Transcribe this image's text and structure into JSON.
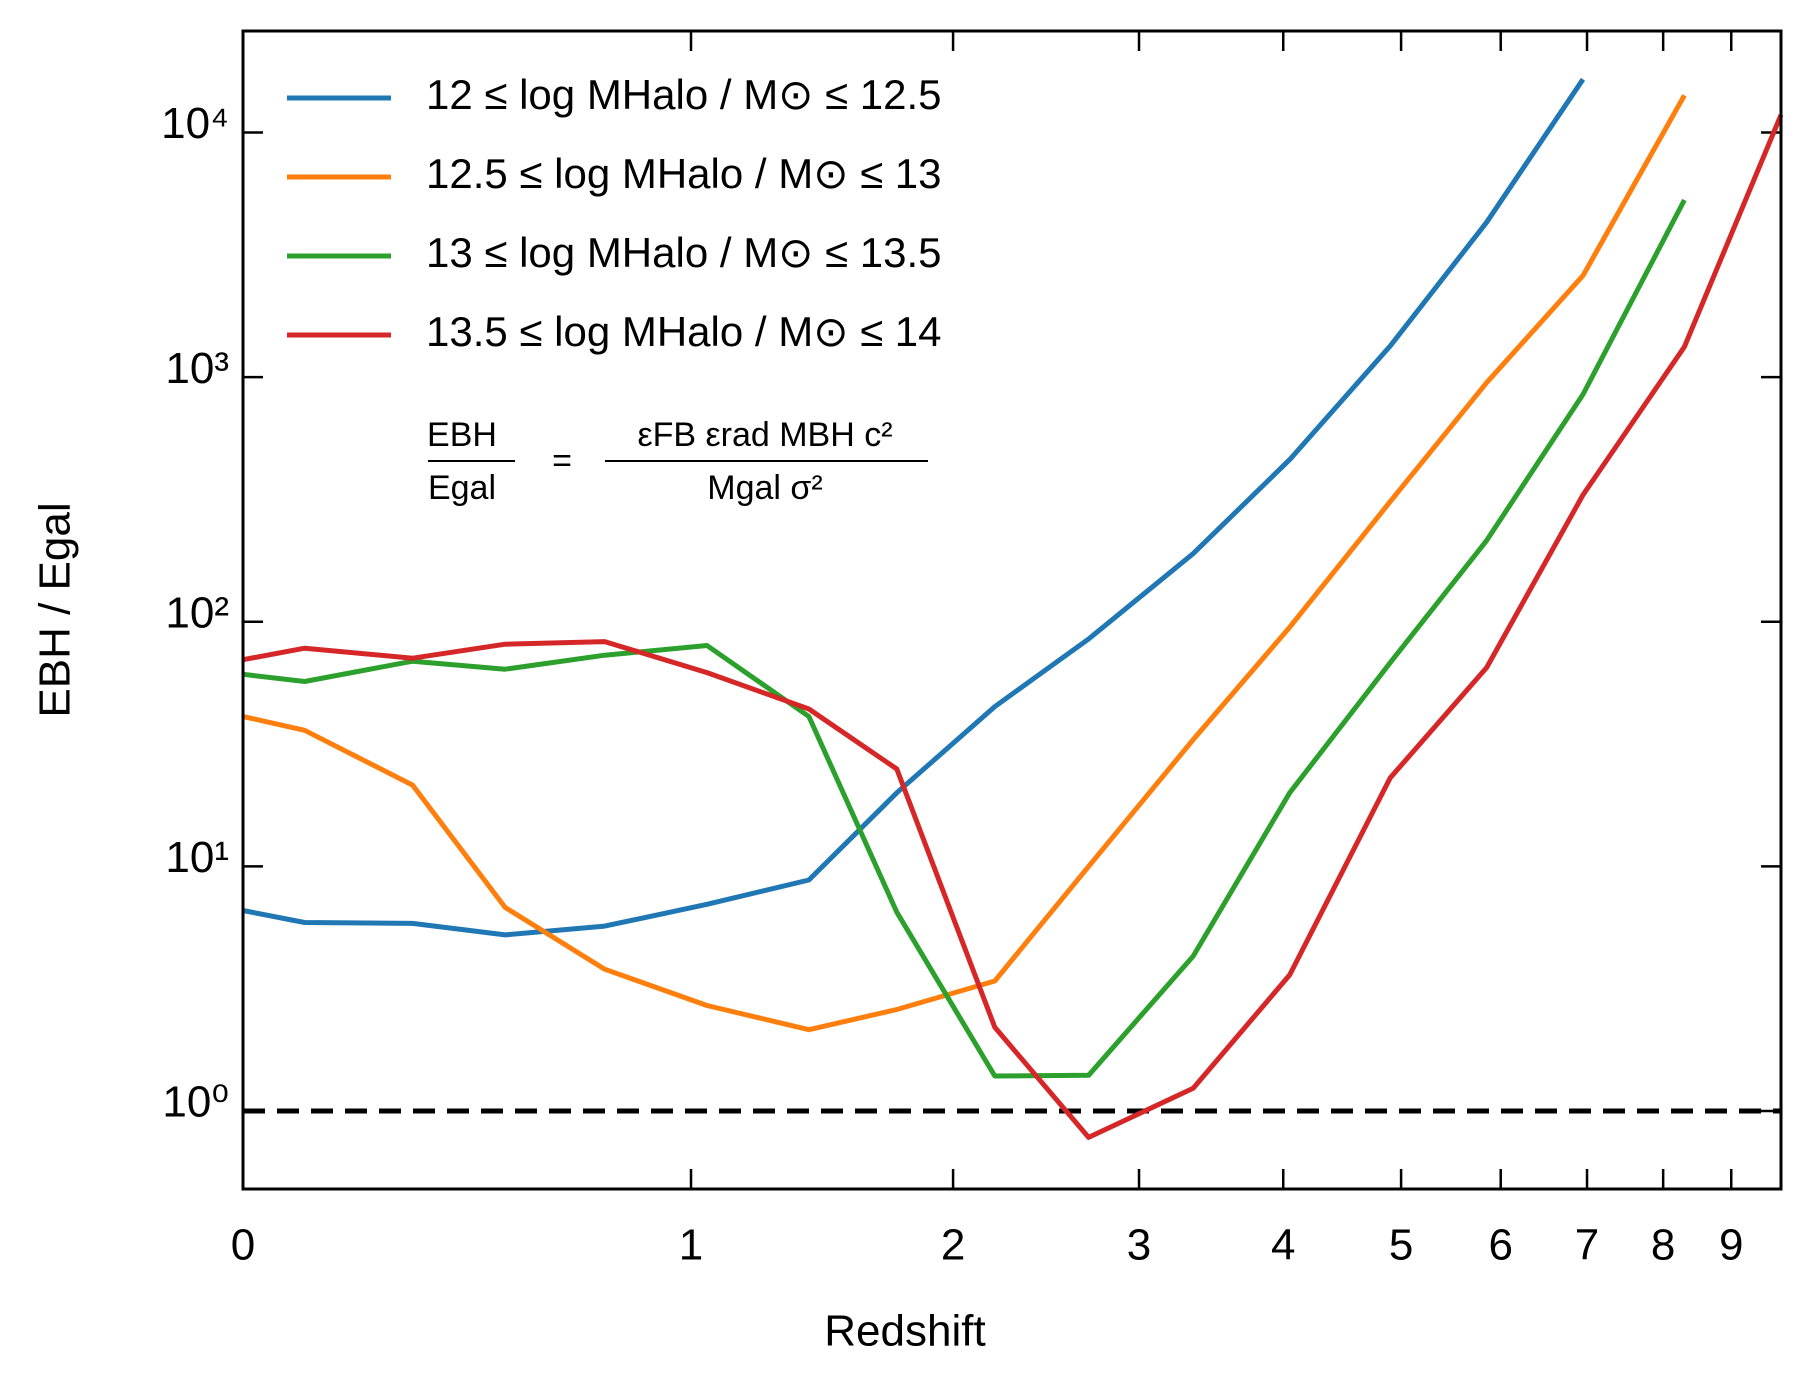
{
  "chart_data": {
    "type": "line",
    "x_label": "Redshift",
    "y_label": "EBH / Egal",
    "xscale": "log1p",
    "yscale": "log",
    "x": [
      0,
      0.1,
      0.3,
      0.5,
      0.75,
      1.05,
      1.4,
      1.75,
      2.2,
      2.7,
      3.35,
      4.05,
      4.9,
      5.85,
      6.95,
      8.3,
      9.8
    ],
    "series": [
      {
        "name": "12 ≤ log MHalo / M⊙ ≤ 12.5",
        "color": "#1f77b4",
        "values": [
          6.6,
          5.9,
          5.85,
          5.25,
          5.7,
          7.0,
          8.8,
          20,
          45,
          85,
          190,
          460,
          1340,
          4300,
          16500,
          null,
          null
        ]
      },
      {
        "name": "12.5 ≤ log MHalo / M⊙ ≤ 13",
        "color": "#ff7f0e",
        "values": [
          41,
          36,
          21.5,
          6.8,
          3.8,
          2.7,
          2.15,
          2.6,
          3.4,
          10,
          33,
          95,
          310,
          950,
          2600,
          14200,
          null
        ]
      },
      {
        "name": "13 ≤ log MHalo / M⊙ ≤ 13.5",
        "color": "#2ca02c",
        "values": [
          61,
          57,
          69,
          64,
          73,
          80,
          41,
          6.5,
          1.39,
          1.4,
          4.3,
          20,
          68,
          215,
          850,
          5300,
          null
        ]
      },
      {
        "name": "13.5 ≤ log MHalo / M⊙ ≤ 14",
        "color": "#d62728",
        "values": [
          70,
          78,
          71,
          81,
          83,
          62,
          44,
          25,
          2.2,
          0.78,
          1.24,
          3.6,
          23,
          65,
          330,
          1330,
          11800
        ]
      }
    ],
    "annotation": [
      "EBH",
      "Egal",
      "=",
      "εFB εrad MBH c²",
      "Mgal σ²"
    ],
    "hline": 1,
    "xlim": [
      0,
      9.8
    ],
    "xticks": [
      0,
      1,
      2,
      3,
      4,
      5,
      6,
      7,
      8,
      9
    ],
    "ylim": [
      0.48,
      26000
    ],
    "yticks": [
      {
        "value": 1,
        "label": "10⁰"
      },
      {
        "value": 10,
        "label": "10¹"
      },
      {
        "value": 100,
        "label": "10²"
      },
      {
        "value": 1000,
        "label": "10³"
      },
      {
        "value": 10000,
        "label": "10⁴"
      }
    ],
    "legend": "upper-left",
    "grid": false
  }
}
